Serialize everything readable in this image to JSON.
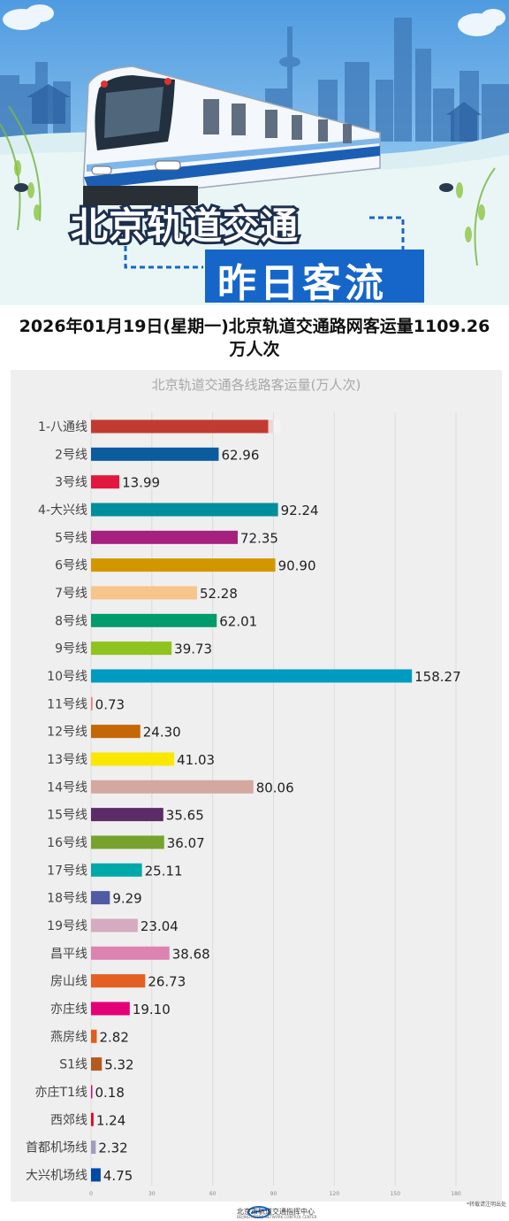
{
  "banner": {
    "title_line1": "北京轨道交通",
    "title_line2": "昨日客流"
  },
  "headline": "2026年01月19日(星期一)北京轨道交通路网客运量1109.26万人次",
  "footer": {
    "org_name": "北京市轨道交通指挥中心",
    "org_name_en": "BEIJING METRO NETWORK CONTROL CENTER",
    "note": "*转载请注明出处"
  },
  "chart_data": {
    "type": "bar",
    "orientation": "horizontal",
    "title": "北京轨道交通各线路客运量(万人次)",
    "xlim": [
      0,
      180
    ],
    "xticks": [
      "0",
      "30",
      "60",
      "90",
      "120",
      "150",
      "180"
    ],
    "grid": true,
    "categories": [
      "1-八通线",
      "2号线",
      "3号线",
      "4-大兴线",
      "5号线",
      "6号线",
      "7号线",
      "8号线",
      "9号线",
      "10号线",
      "11号线",
      "12号线",
      "13号线",
      "14号线",
      "15号线",
      "16号线",
      "17号线",
      "18号线",
      "19号线",
      "昌平线",
      "房山线",
      "亦庄线",
      "燕房线",
      "S1线",
      "亦庄T1线",
      "西郊线",
      "首都机场线",
      "大兴机场线"
    ],
    "values": [
      null,
      62.96,
      13.99,
      92.24,
      72.35,
      90.9,
      52.28,
      62.01,
      39.73,
      158.27,
      0.73,
      24.3,
      41.03,
      80.06,
      35.65,
      36.07,
      25.11,
      9.29,
      23.04,
      38.68,
      26.73,
      19.1,
      2.82,
      5.32,
      0.18,
      1.24,
      2.32,
      4.75
    ],
    "value_labels": [
      "",
      "62.96",
      "13.99",
      "92.24",
      "72.35",
      "90.90",
      "52.28",
      "62.01",
      "39.73",
      "158.27",
      "0.73",
      "24.30",
      "41.03",
      "80.06",
      "35.65",
      "36.07",
      "25.11",
      "9.29",
      "23.04",
      "38.68",
      "26.73",
      "19.10",
      "2.82",
      "5.32",
      "0.18",
      "1.24",
      "2.32",
      "4.75"
    ],
    "first_bar_visible_extent": 90,
    "colors": [
      "#c23b32",
      "#0b5c9e",
      "#e3173e",
      "#008e9c",
      "#a6217f",
      "#d29700",
      "#f6c58c",
      "#009b6b",
      "#8fc31f",
      "#009bc0",
      "#ed796b",
      "#c46706",
      "#f9e700",
      "#d5a7a1",
      "#5b2c68",
      "#76a32e",
      "#00a9a9",
      "#515aa4",
      "#d6abc1",
      "#de82b2",
      "#e46022",
      "#e40077",
      "#e25e1a",
      "#b35a20",
      "#e40077",
      "#e50619",
      "#a29bbb",
      "#0049a5"
    ]
  }
}
